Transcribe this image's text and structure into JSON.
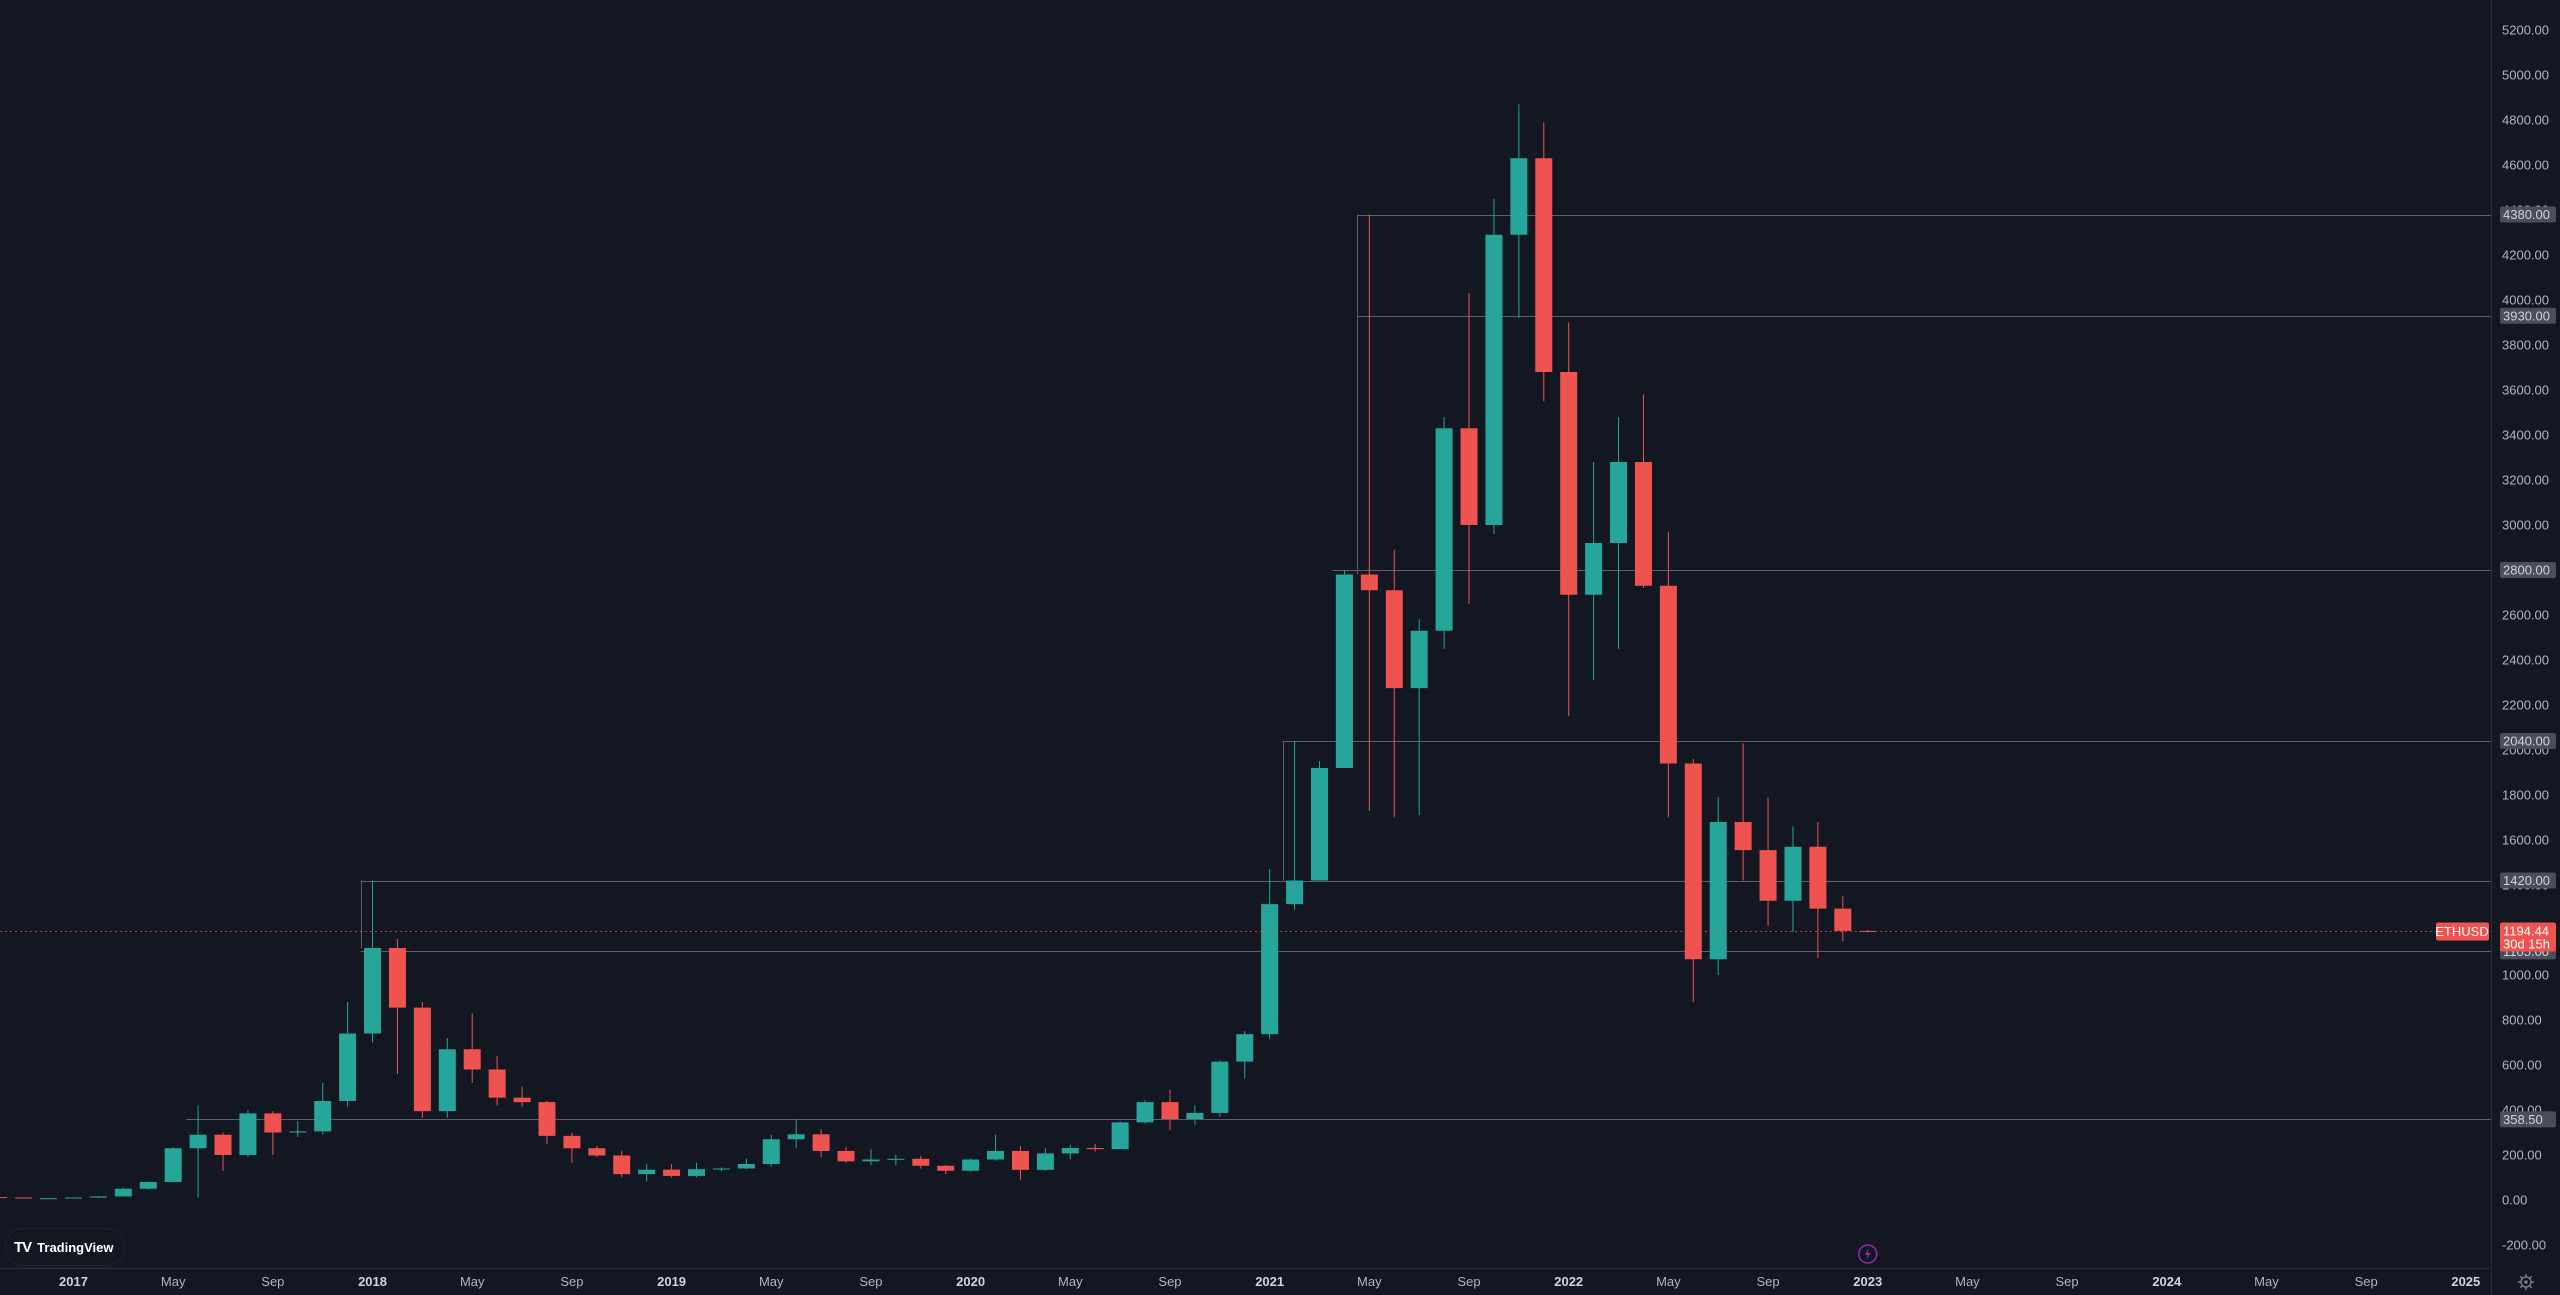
{
  "brand": {
    "logo_mark": "TV",
    "name": "TradingView"
  },
  "icons": {
    "logo": "tradingview-logo-icon",
    "event": "lightning-event-icon",
    "settings": "gear-icon"
  },
  "colors": {
    "background": "#131722",
    "up": "#26a69a",
    "down": "#ef5350",
    "grid_line": "#5d606b",
    "axis_text": "#b2b5be",
    "event": "#9c27b0"
  },
  "chart_data": {
    "type": "candlestick",
    "symbol": "ETHUSD",
    "interval": "1M",
    "x_axis": {
      "range": [
        "2016-09",
        "2025-01"
      ],
      "tick_labels": [
        {
          "date": "2017-01",
          "label": "2017",
          "bold": true
        },
        {
          "date": "2017-05",
          "label": "May",
          "bold": false
        },
        {
          "date": "2017-09",
          "label": "Sep",
          "bold": false
        },
        {
          "date": "2018-01",
          "label": "2018",
          "bold": true
        },
        {
          "date": "2018-05",
          "label": "May",
          "bold": false
        },
        {
          "date": "2018-09",
          "label": "Sep",
          "bold": false
        },
        {
          "date": "2019-01",
          "label": "2019",
          "bold": true
        },
        {
          "date": "2019-05",
          "label": "May",
          "bold": false
        },
        {
          "date": "2019-09",
          "label": "Sep",
          "bold": false
        },
        {
          "date": "2020-01",
          "label": "2020",
          "bold": true
        },
        {
          "date": "2020-05",
          "label": "May",
          "bold": false
        },
        {
          "date": "2020-09",
          "label": "Sep",
          "bold": false
        },
        {
          "date": "2021-01",
          "label": "2021",
          "bold": true
        },
        {
          "date": "2021-05",
          "label": "May",
          "bold": false
        },
        {
          "date": "2021-09",
          "label": "Sep",
          "bold": false
        },
        {
          "date": "2022-01",
          "label": "2022",
          "bold": true
        },
        {
          "date": "2022-05",
          "label": "May",
          "bold": false
        },
        {
          "date": "2022-09",
          "label": "Sep",
          "bold": false
        },
        {
          "date": "2023-01",
          "label": "2023",
          "bold": true
        },
        {
          "date": "2023-05",
          "label": "May",
          "bold": false
        },
        {
          "date": "2023-09",
          "label": "Sep",
          "bold": false
        },
        {
          "date": "2024-01",
          "label": "2024",
          "bold": true
        },
        {
          "date": "2024-05",
          "label": "May",
          "bold": false
        },
        {
          "date": "2024-09",
          "label": "Sep",
          "bold": false
        },
        {
          "date": "2025-01",
          "label": "2025",
          "bold": true
        }
      ]
    },
    "y_axis": {
      "range": [
        -300,
        5330
      ],
      "tick_labels": [
        "5200.00",
        "5000.00",
        "4800.00",
        "4600.00",
        "4400.00",
        "4200.00",
        "4000.00",
        "3800.00",
        "3600.00",
        "3400.00",
        "3200.00",
        "3000.00",
        "2800.00",
        "2600.00",
        "2400.00",
        "2200.00",
        "2000.00",
        "1800.00",
        "1600.00",
        "1400.00",
        "1200.00",
        "1000.00",
        "800.00",
        "600.00",
        "400.00",
        "200.00",
        "0.00",
        "-200.00"
      ]
    },
    "candles": [
      {
        "date": "2016-09",
        "o": 12,
        "h": 15,
        "l": 11,
        "c": 13
      },
      {
        "date": "2016-10",
        "o": 13,
        "h": 14,
        "l": 10,
        "c": 11
      },
      {
        "date": "2016-11",
        "o": 11,
        "h": 12,
        "l": 8,
        "c": 8
      },
      {
        "date": "2016-12",
        "o": 8,
        "h": 9,
        "l": 7,
        "c": 8
      },
      {
        "date": "2017-01",
        "o": 8,
        "h": 11,
        "l": 8,
        "c": 11
      },
      {
        "date": "2017-02",
        "o": 11,
        "h": 17,
        "l": 10,
        "c": 16
      },
      {
        "date": "2017-03",
        "o": 16,
        "h": 55,
        "l": 15,
        "c": 50
      },
      {
        "date": "2017-04",
        "o": 50,
        "h": 82,
        "l": 47,
        "c": 80
      },
      {
        "date": "2017-05",
        "o": 80,
        "h": 235,
        "l": 78,
        "c": 230
      },
      {
        "date": "2017-06",
        "o": 230,
        "h": 420,
        "l": 10,
        "c": 290
      },
      {
        "date": "2017-07",
        "o": 290,
        "h": 300,
        "l": 130,
        "c": 200
      },
      {
        "date": "2017-08",
        "o": 200,
        "h": 400,
        "l": 190,
        "c": 385
      },
      {
        "date": "2017-09",
        "o": 385,
        "h": 395,
        "l": 200,
        "c": 300
      },
      {
        "date": "2017-10",
        "o": 300,
        "h": 350,
        "l": 280,
        "c": 305
      },
      {
        "date": "2017-11",
        "o": 305,
        "h": 520,
        "l": 290,
        "c": 440
      },
      {
        "date": "2017-12",
        "o": 440,
        "h": 880,
        "l": 415,
        "c": 740
      },
      {
        "date": "2018-01",
        "o": 740,
        "h": 1420,
        "l": 700,
        "c": 1120
      },
      {
        "date": "2018-02",
        "o": 1120,
        "h": 1160,
        "l": 560,
        "c": 855
      },
      {
        "date": "2018-03",
        "o": 855,
        "h": 880,
        "l": 365,
        "c": 395
      },
      {
        "date": "2018-04",
        "o": 395,
        "h": 720,
        "l": 365,
        "c": 670
      },
      {
        "date": "2018-05",
        "o": 670,
        "h": 830,
        "l": 520,
        "c": 580
      },
      {
        "date": "2018-06",
        "o": 580,
        "h": 640,
        "l": 420,
        "c": 455
      },
      {
        "date": "2018-07",
        "o": 455,
        "h": 505,
        "l": 415,
        "c": 435
      },
      {
        "date": "2018-08",
        "o": 435,
        "h": 440,
        "l": 250,
        "c": 285
      },
      {
        "date": "2018-09",
        "o": 285,
        "h": 300,
        "l": 165,
        "c": 230
      },
      {
        "date": "2018-10",
        "o": 230,
        "h": 240,
        "l": 190,
        "c": 198
      },
      {
        "date": "2018-11",
        "o": 198,
        "h": 220,
        "l": 100,
        "c": 115
      },
      {
        "date": "2018-12",
        "o": 115,
        "h": 160,
        "l": 82,
        "c": 135
      },
      {
        "date": "2019-01",
        "o": 135,
        "h": 160,
        "l": 100,
        "c": 107
      },
      {
        "date": "2019-02",
        "o": 107,
        "h": 165,
        "l": 100,
        "c": 137
      },
      {
        "date": "2019-03",
        "o": 137,
        "h": 145,
        "l": 128,
        "c": 140
      },
      {
        "date": "2019-04",
        "o": 140,
        "h": 185,
        "l": 137,
        "c": 160
      },
      {
        "date": "2019-05",
        "o": 160,
        "h": 290,
        "l": 150,
        "c": 270
      },
      {
        "date": "2019-06",
        "o": 270,
        "h": 360,
        "l": 230,
        "c": 292
      },
      {
        "date": "2019-07",
        "o": 292,
        "h": 315,
        "l": 190,
        "c": 218
      },
      {
        "date": "2019-08",
        "o": 218,
        "h": 235,
        "l": 165,
        "c": 172
      },
      {
        "date": "2019-09",
        "o": 172,
        "h": 225,
        "l": 155,
        "c": 180
      },
      {
        "date": "2019-10",
        "o": 180,
        "h": 200,
        "l": 155,
        "c": 183
      },
      {
        "date": "2019-11",
        "o": 183,
        "h": 195,
        "l": 140,
        "c": 152
      },
      {
        "date": "2019-12",
        "o": 152,
        "h": 155,
        "l": 115,
        "c": 130
      },
      {
        "date": "2020-01",
        "o": 130,
        "h": 185,
        "l": 126,
        "c": 180
      },
      {
        "date": "2020-02",
        "o": 180,
        "h": 290,
        "l": 175,
        "c": 218
      },
      {
        "date": "2020-03",
        "o": 218,
        "h": 240,
        "l": 90,
        "c": 134
      },
      {
        "date": "2020-04",
        "o": 134,
        "h": 230,
        "l": 130,
        "c": 207
      },
      {
        "date": "2020-05",
        "o": 207,
        "h": 245,
        "l": 180,
        "c": 231
      },
      {
        "date": "2020-06",
        "o": 231,
        "h": 250,
        "l": 215,
        "c": 226
      },
      {
        "date": "2020-07",
        "o": 226,
        "h": 350,
        "l": 224,
        "c": 345
      },
      {
        "date": "2020-08",
        "o": 345,
        "h": 445,
        "l": 340,
        "c": 435
      },
      {
        "date": "2020-09",
        "o": 435,
        "h": 490,
        "l": 310,
        "c": 360
      },
      {
        "date": "2020-10",
        "o": 360,
        "h": 420,
        "l": 335,
        "c": 387
      },
      {
        "date": "2020-11",
        "o": 387,
        "h": 620,
        "l": 370,
        "c": 615
      },
      {
        "date": "2020-12",
        "o": 615,
        "h": 750,
        "l": 540,
        "c": 737
      },
      {
        "date": "2021-01",
        "o": 737,
        "h": 1470,
        "l": 715,
        "c": 1315
      },
      {
        "date": "2021-02",
        "o": 1315,
        "h": 2040,
        "l": 1290,
        "c": 1420
      },
      {
        "date": "2021-03",
        "o": 1420,
        "h": 1950,
        "l": 1420,
        "c": 1920
      },
      {
        "date": "2021-04",
        "o": 1920,
        "h": 2800,
        "l": 1920,
        "c": 2780
      },
      {
        "date": "2021-05",
        "o": 2780,
        "h": 4380,
        "l": 1730,
        "c": 2710
      },
      {
        "date": "2021-06",
        "o": 2710,
        "h": 2890,
        "l": 1700,
        "c": 2275
      },
      {
        "date": "2021-07",
        "o": 2275,
        "h": 2580,
        "l": 1710,
        "c": 2530
      },
      {
        "date": "2021-08",
        "o": 2530,
        "h": 3480,
        "l": 2450,
        "c": 3430
      },
      {
        "date": "2021-09",
        "o": 3430,
        "h": 4030,
        "l": 2650,
        "c": 3000
      },
      {
        "date": "2021-10",
        "o": 3000,
        "h": 4450,
        "l": 2960,
        "c": 4290
      },
      {
        "date": "2021-11",
        "o": 4290,
        "h": 4870,
        "l": 3920,
        "c": 4630
      },
      {
        "date": "2021-12",
        "o": 4630,
        "h": 4790,
        "l": 3550,
        "c": 3680
      },
      {
        "date": "2022-01",
        "o": 3680,
        "h": 3900,
        "l": 2150,
        "c": 2690
      },
      {
        "date": "2022-02",
        "o": 2690,
        "h": 3280,
        "l": 2310,
        "c": 2920
      },
      {
        "date": "2022-03",
        "o": 2920,
        "h": 3480,
        "l": 2450,
        "c": 3280
      },
      {
        "date": "2022-04",
        "o": 3280,
        "h": 3580,
        "l": 2720,
        "c": 2730
      },
      {
        "date": "2022-05",
        "o": 2730,
        "h": 2970,
        "l": 1700,
        "c": 1940
      },
      {
        "date": "2022-06",
        "o": 1940,
        "h": 1960,
        "l": 880,
        "c": 1070
      },
      {
        "date": "2022-07",
        "o": 1070,
        "h": 1790,
        "l": 1000,
        "c": 1680
      },
      {
        "date": "2022-08",
        "o": 1680,
        "h": 2030,
        "l": 1420,
        "c": 1555
      },
      {
        "date": "2022-09",
        "o": 1555,
        "h": 1790,
        "l": 1220,
        "c": 1330
      },
      {
        "date": "2022-10",
        "o": 1330,
        "h": 1660,
        "l": 1190,
        "c": 1570
      },
      {
        "date": "2022-11",
        "o": 1570,
        "h": 1680,
        "l": 1075,
        "c": 1295
      },
      {
        "date": "2022-12",
        "o": 1295,
        "h": 1350,
        "l": 1150,
        "c": 1196
      },
      {
        "date": "2023-01",
        "o": 1196,
        "h": 1200,
        "l": 1190,
        "c": 1194.44
      }
    ],
    "horizontal_levels": [
      {
        "value": 4380,
        "label": "4380.00",
        "start": "2021-05"
      },
      {
        "value": 3930,
        "label": "3930.00",
        "start": "2021-05"
      },
      {
        "value": 2800,
        "label": "2800.00",
        "start": "2021-04"
      },
      {
        "value": 2040,
        "label": "2040.00",
        "start": "2021-02"
      },
      {
        "value": 1420,
        "label": "1420.00",
        "start": "2018-01"
      },
      {
        "value": 1105,
        "label": "1105.00",
        "start": "2018-01"
      },
      {
        "value": 358.5,
        "label": "358.50",
        "start": "2017-06"
      }
    ],
    "current_price": {
      "symbol": "ETHUSD",
      "value": 1194.44,
      "label": "1194.44",
      "countdown": "30d 15h"
    },
    "event_marker_date": "2023-01"
  }
}
